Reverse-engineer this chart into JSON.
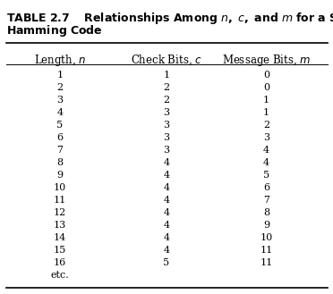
{
  "title_line1": "TABLE 2.7    Relationships Among ",
  "title_italic_n": "n",
  "title_middle": ", ",
  "title_italic_c": "c",
  "title_and": ", and ",
  "title_italic_m": "m",
  "title_end": " for a SECSED",
  "title_line2": "Hamming Code",
  "col_headers": [
    "Length, ",
    "Check Bits, ",
    "Message Bits, "
  ],
  "col_italic": [
    "n",
    "c",
    "m"
  ],
  "length_n": [
    1,
    2,
    3,
    4,
    5,
    6,
    7,
    8,
    9,
    10,
    11,
    12,
    13,
    14,
    15,
    16,
    "etc."
  ],
  "check_c": [
    1,
    2,
    2,
    3,
    3,
    3,
    3,
    4,
    4,
    4,
    4,
    4,
    4,
    4,
    4,
    5,
    ""
  ],
  "message_m": [
    0,
    0,
    1,
    1,
    2,
    3,
    4,
    4,
    5,
    6,
    7,
    8,
    9,
    10,
    11,
    11,
    ""
  ],
  "bg_color": "#ffffff",
  "text_color": "#000000",
  "header_fontsize": 8.5,
  "title_fontsize": 8.5,
  "data_fontsize": 8.5
}
